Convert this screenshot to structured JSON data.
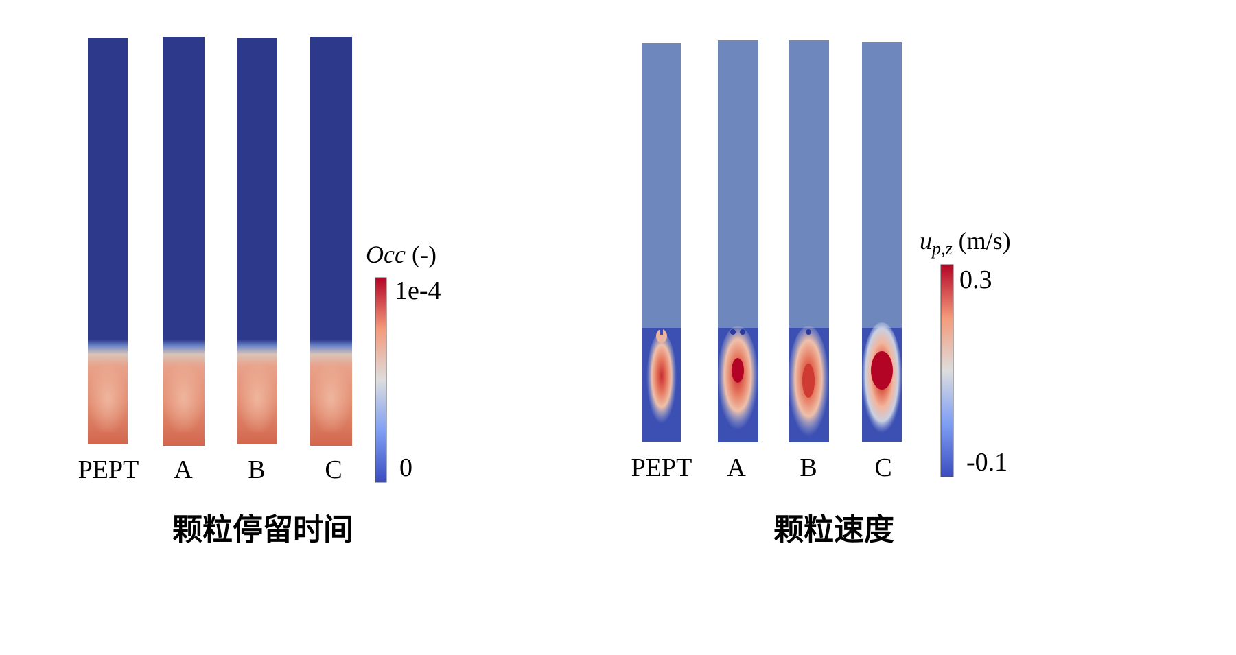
{
  "left_panel": {
    "caption": "颗粒停留时间",
    "columns": [
      "PEPT",
      "A",
      "B",
      "C"
    ],
    "colorbar": {
      "symbol": "Occ",
      "unit": "(-)",
      "max_label": "1e-4",
      "min_label": "0",
      "colormap": [
        "#3b4cc0",
        "#7f9ff5",
        "#dddddd",
        "#f49a7b",
        "#b40426"
      ]
    },
    "background_color": "#2d3a8c"
  },
  "right_panel": {
    "caption": "颗粒速度",
    "columns": [
      "PEPT",
      "A",
      "B",
      "C"
    ],
    "colorbar": {
      "symbol_base": "u",
      "symbol_sub": "p,z",
      "unit": "(m/s)",
      "max_label": "0.3",
      "min_label": "-0.1",
      "colormap": [
        "#3b4cc0",
        "#7f9ff5",
        "#dddddd",
        "#f49a7b",
        "#b40426"
      ]
    },
    "background_color": "#6e88bd"
  }
}
